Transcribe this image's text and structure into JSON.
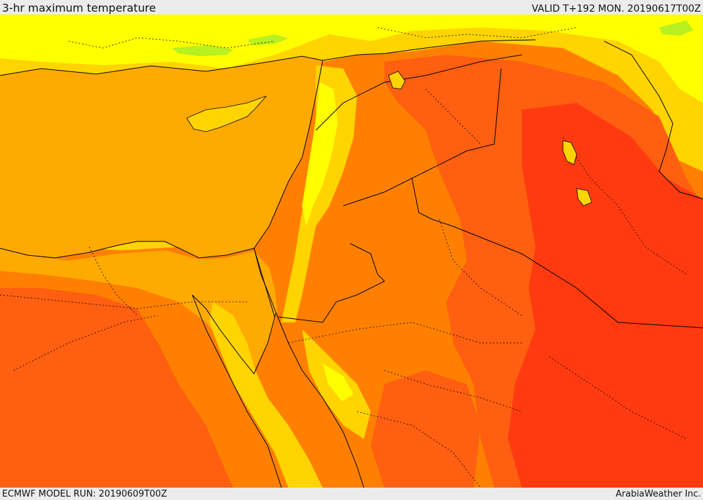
{
  "header": {
    "title": "3-hr maximum temperature",
    "valid": "VALID T+192 MON. 20190617T00Z"
  },
  "footer": {
    "model_run": "ECMWF MODEL RUN: 20190609T00Z",
    "credit": "ArabiaWeather Inc."
  },
  "map": {
    "field": "3-hr maximum temperature",
    "palette": {
      "mild_green": "#b8f020",
      "warm_yellow": "#ffff00",
      "warm_gold": "#ffd400",
      "sea_orange": "#ffaa00",
      "hot_orange": "#ff8000",
      "very_hot": "#ff5f10",
      "extreme": "#ff3a10"
    },
    "line_color": "#000000"
  }
}
